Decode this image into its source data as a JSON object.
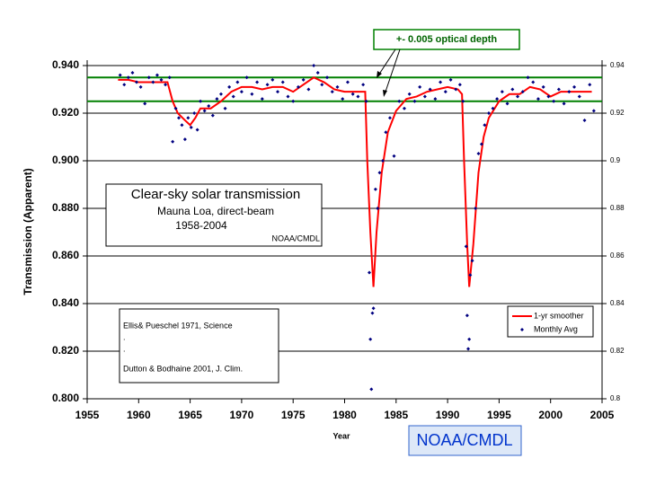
{
  "chart_data": {
    "type": "line",
    "xlabel": "Year",
    "ylabel": "Transmission (Apparent)",
    "xlim": [
      1955,
      2005
    ],
    "xticks": [
      1955,
      1960,
      1965,
      1970,
      1975,
      1980,
      1985,
      1990,
      1995,
      2000,
      2005
    ],
    "ylim": [
      0.8,
      0.94
    ],
    "yticks": [
      {
        "value": 0.8,
        "label": "0.800"
      },
      {
        "value": 0.82,
        "label": "0.820"
      },
      {
        "value": 0.84,
        "label": "0.840"
      },
      {
        "value": 0.86,
        "label": "0.860"
      },
      {
        "value": 0.88,
        "label": "0.880"
      },
      {
        "value": 0.9,
        "label": "0.900"
      },
      {
        "value": 0.92,
        "label": "0.920"
      },
      {
        "value": 0.94,
        "label": "0.940"
      }
    ],
    "y2lim": [
      0.8,
      0.94
    ],
    "y2ticks": [
      0.8,
      0.82,
      0.84,
      0.86,
      0.88,
      0.9,
      0.92,
      0.94
    ],
    "grid": true,
    "legend": "lower right",
    "reference_lines": {
      "values": [
        0.935,
        0.925
      ],
      "color": "#008000"
    },
    "annotation": "+- 0.005 optical depth",
    "text_box": [
      "Clear-sky solar transmission",
      "Mauna Loa, direct-beam",
      "1958-2004",
      "NOAA/CMDL"
    ],
    "references": [
      "Ellis& Pueschel 1971, Science",
      ".",
      ".",
      "Dutton & Bodhaine 2001, J. Clim."
    ],
    "footer": "NOAA/CMDL",
    "series": [
      {
        "name": "1-yr smoother",
        "type": "line",
        "color": "#ff0000",
        "x": [
          1958,
          1959,
          1960,
          1961,
          1962,
          1962.8,
          1963.3,
          1963.8,
          1964.5,
          1965,
          1965.5,
          1966,
          1967,
          1968,
          1969,
          1970,
          1971,
          1972,
          1973,
          1974,
          1975,
          1976,
          1977,
          1978,
          1979,
          1980,
          1981,
          1982,
          1982.2,
          1982.5,
          1982.8,
          1983.1,
          1983.6,
          1984.2,
          1985,
          1986,
          1987,
          1988,
          1989,
          1990,
          1991,
          1991.4,
          1991.6,
          1991.9,
          1992.1,
          1992.5,
          1993,
          1993.5,
          1994,
          1995,
          1996,
          1997,
          1998,
          1999,
          2000,
          2001,
          2002,
          2003,
          2004
        ],
        "values": [
          0.934,
          0.934,
          0.933,
          0.933,
          0.933,
          0.933,
          0.925,
          0.92,
          0.917,
          0.915,
          0.918,
          0.922,
          0.922,
          0.925,
          0.929,
          0.931,
          0.931,
          0.93,
          0.931,
          0.931,
          0.929,
          0.932,
          0.935,
          0.933,
          0.93,
          0.929,
          0.929,
          0.929,
          0.9,
          0.87,
          0.847,
          0.87,
          0.895,
          0.912,
          0.921,
          0.926,
          0.927,
          0.929,
          0.93,
          0.931,
          0.93,
          0.928,
          0.9,
          0.865,
          0.847,
          0.865,
          0.895,
          0.91,
          0.918,
          0.925,
          0.928,
          0.928,
          0.931,
          0.93,
          0.927,
          0.929,
          0.929,
          0.929,
          0.929
        ]
      },
      {
        "name": "Monthly Avg",
        "type": "scatter",
        "color": "#000080",
        "x": [
          1958.2,
          1958.6,
          1959.0,
          1959.4,
          1959.8,
          1960.2,
          1960.6,
          1961.0,
          1961.4,
          1961.8,
          1962.2,
          1962.6,
          1963.0,
          1963.3,
          1963.6,
          1963.9,
          1964.2,
          1964.5,
          1964.8,
          1965.1,
          1965.4,
          1965.7,
          1966.0,
          1966.4,
          1966.8,
          1967.2,
          1967.6,
          1968.0,
          1968.4,
          1968.8,
          1969.2,
          1969.6,
          1970.0,
          1970.5,
          1971.0,
          1971.5,
          1972.0,
          1972.5,
          1973.0,
          1973.5,
          1974.0,
          1974.5,
          1975.0,
          1975.5,
          1976.0,
          1976.5,
          1977.0,
          1977.4,
          1977.8,
          1978.3,
          1978.8,
          1979.3,
          1979.8,
          1980.3,
          1980.8,
          1981.3,
          1981.8,
          1982.1,
          1982.4,
          1982.5,
          1982.6,
          1982.7,
          1982.8,
          1983.0,
          1983.2,
          1983.4,
          1983.7,
          1984.0,
          1984.4,
          1984.8,
          1985.3,
          1985.8,
          1986.3,
          1986.8,
          1987.3,
          1987.8,
          1988.3,
          1988.8,
          1989.3,
          1989.8,
          1990.3,
          1990.8,
          1991.2,
          1991.5,
          1991.8,
          1991.9,
          1992.0,
          1992.1,
          1992.2,
          1992.4,
          1992.7,
          1993.0,
          1993.3,
          1993.6,
          1994.0,
          1994.4,
          1994.8,
          1995.3,
          1995.8,
          1996.3,
          1996.8,
          1997.3,
          1997.8,
          1998.3,
          1998.8,
          1999.3,
          1999.8,
          2000.3,
          2000.8,
          2001.3,
          2001.8,
          2002.3,
          2002.8,
          2003.3,
          2003.8,
          2004.2
        ],
        "values": [
          0.936,
          0.932,
          0.935,
          0.937,
          0.933,
          0.931,
          0.924,
          0.935,
          0.933,
          0.936,
          0.934,
          0.932,
          0.935,
          0.908,
          0.922,
          0.918,
          0.915,
          0.909,
          0.918,
          0.914,
          0.92,
          0.913,
          0.925,
          0.921,
          0.923,
          0.919,
          0.926,
          0.928,
          0.922,
          0.931,
          0.927,
          0.933,
          0.929,
          0.935,
          0.928,
          0.933,
          0.926,
          0.932,
          0.934,
          0.929,
          0.933,
          0.927,
          0.925,
          0.931,
          0.934,
          0.93,
          0.94,
          0.937,
          0.932,
          0.935,
          0.929,
          0.931,
          0.926,
          0.933,
          0.928,
          0.927,
          0.932,
          0.925,
          0.853,
          0.825,
          0.804,
          0.836,
          0.838,
          0.888,
          0.88,
          0.895,
          0.9,
          0.912,
          0.918,
          0.902,
          0.925,
          0.922,
          0.928,
          0.925,
          0.931,
          0.927,
          0.93,
          0.926,
          0.933,
          0.929,
          0.934,
          0.93,
          0.932,
          0.925,
          0.864,
          0.835,
          0.821,
          0.825,
          0.852,
          0.858,
          0.88,
          0.903,
          0.907,
          0.915,
          0.92,
          0.922,
          0.926,
          0.929,
          0.924,
          0.93,
          0.927,
          0.929,
          0.935,
          0.933,
          0.926,
          0.931,
          0.927,
          0.925,
          0.93,
          0.924,
          0.929,
          0.931,
          0.927,
          0.917,
          0.932,
          0.921
        ]
      }
    ]
  }
}
